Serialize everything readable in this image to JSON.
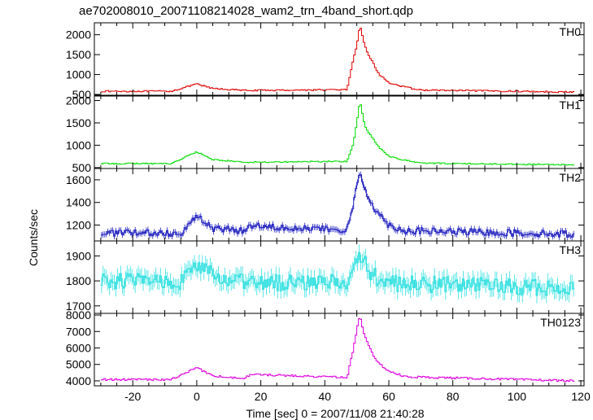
{
  "chart_data": {
    "type": "line",
    "title": "ae702008010_20071108214028_wam2_trn_4band_short.qdp",
    "xlabel": "Time [sec] 0 = 2007/11/08 21:40:28",
    "ylabel": "Counts/sec",
    "xlim": [
      -32,
      121
    ],
    "x_ticks": [
      "-20",
      "0",
      "20",
      "40",
      "60",
      "80",
      "100",
      "120"
    ],
    "x_tick_values": [
      -20,
      0,
      20,
      40,
      60,
      80,
      100,
      120
    ],
    "panels": [
      {
        "name": "TH0",
        "color": "#e00000",
        "ylim": [
          480,
          2300
        ],
        "y_ticks": [
          "500",
          "1000",
          "1500",
          "2000"
        ],
        "y_tick_values": [
          500,
          1000,
          1500,
          2000
        ],
        "base": 560,
        "noise": 18,
        "errbars": false,
        "features": [
          {
            "x": -8,
            "y": 580
          },
          {
            "x": 0,
            "y": 760
          },
          {
            "x": 5,
            "y": 650
          },
          {
            "x": 15,
            "y": 600
          },
          {
            "x": 47,
            "y": 620
          },
          {
            "x": 49,
            "y": 1400
          },
          {
            "x": 50,
            "y": 1700
          },
          {
            "x": 51,
            "y": 2250
          },
          {
            "x": 52,
            "y": 1900
          },
          {
            "x": 53,
            "y": 1600
          },
          {
            "x": 55,
            "y": 1300
          },
          {
            "x": 57,
            "y": 1000
          },
          {
            "x": 60,
            "y": 800
          },
          {
            "x": 64,
            "y": 700
          },
          {
            "x": 70,
            "y": 610
          },
          {
            "x": 118,
            "y": 560
          }
        ]
      },
      {
        "name": "TH1",
        "color": "#00dd00",
        "ylim": [
          480,
          2100
        ],
        "y_ticks": [
          "500",
          "1000",
          "1500",
          "2000"
        ],
        "y_tick_values": [
          500,
          1000,
          1500,
          2000
        ],
        "base": 560,
        "noise": 14,
        "errbars": false,
        "features": [
          {
            "x": -8,
            "y": 590
          },
          {
            "x": 0,
            "y": 850
          },
          {
            "x": 5,
            "y": 680
          },
          {
            "x": 15,
            "y": 620
          },
          {
            "x": 47,
            "y": 640
          },
          {
            "x": 49,
            "y": 1050
          },
          {
            "x": 50,
            "y": 1500
          },
          {
            "x": 51,
            "y": 2000
          },
          {
            "x": 52,
            "y": 1600
          },
          {
            "x": 53,
            "y": 1350
          },
          {
            "x": 55,
            "y": 1150
          },
          {
            "x": 57,
            "y": 950
          },
          {
            "x": 60,
            "y": 760
          },
          {
            "x": 64,
            "y": 680
          },
          {
            "x": 70,
            "y": 600
          },
          {
            "x": 118,
            "y": 560
          }
        ]
      },
      {
        "name": "TH2",
        "color": "#2020c0",
        "ylim": [
          1060,
          1700
        ],
        "y_ticks": [
          "1200",
          "1400",
          "1600"
        ],
        "y_tick_values": [
          1200,
          1400,
          1600
        ],
        "base": 1120,
        "noise": 30,
        "errbars": true,
        "features": [
          {
            "x": -5,
            "y": 1130
          },
          {
            "x": 0,
            "y": 1280
          },
          {
            "x": 5,
            "y": 1170
          },
          {
            "x": 15,
            "y": 1150
          },
          {
            "x": 17,
            "y": 1200
          },
          {
            "x": 47,
            "y": 1150
          },
          {
            "x": 49,
            "y": 1400
          },
          {
            "x": 51,
            "y": 1660
          },
          {
            "x": 53,
            "y": 1480
          },
          {
            "x": 56,
            "y": 1330
          },
          {
            "x": 60,
            "y": 1200
          },
          {
            "x": 65,
            "y": 1150
          },
          {
            "x": 118,
            "y": 1120
          }
        ]
      },
      {
        "name": "TH3",
        "color": "#30e0e0",
        "ylim": [
          1670,
          1960
        ],
        "y_ticks": [
          "1700",
          "1800",
          "1900"
        ],
        "y_tick_values": [
          1700,
          1800,
          1900
        ],
        "base": 1780,
        "noise": 35,
        "errbars": true,
        "features": [
          {
            "x": -5,
            "y": 1800
          },
          {
            "x": 0,
            "y": 1860
          },
          {
            "x": 5,
            "y": 1820
          },
          {
            "x": 15,
            "y": 1790
          },
          {
            "x": 48,
            "y": 1800
          },
          {
            "x": 51,
            "y": 1910
          },
          {
            "x": 54,
            "y": 1830
          },
          {
            "x": 60,
            "y": 1790
          },
          {
            "x": 118,
            "y": 1770
          }
        ]
      },
      {
        "name": "TH0123",
        "color": "#e000e0",
        "ylim": [
          3700,
          8100
        ],
        "y_ticks": [
          "4000",
          "5000",
          "6000",
          "7000",
          "8000"
        ],
        "y_tick_values": [
          4000,
          5000,
          6000,
          7000,
          8000
        ],
        "base": 4020,
        "noise": 60,
        "errbars": false,
        "features": [
          {
            "x": -8,
            "y": 4080
          },
          {
            "x": 0,
            "y": 4800
          },
          {
            "x": 5,
            "y": 4300
          },
          {
            "x": 15,
            "y": 4150
          },
          {
            "x": 17,
            "y": 4400
          },
          {
            "x": 47,
            "y": 4200
          },
          {
            "x": 49,
            "y": 6000
          },
          {
            "x": 50,
            "y": 7100
          },
          {
            "x": 51,
            "y": 8000
          },
          {
            "x": 52,
            "y": 7000
          },
          {
            "x": 54,
            "y": 6000
          },
          {
            "x": 56,
            "y": 5200
          },
          {
            "x": 60,
            "y": 4600
          },
          {
            "x": 65,
            "y": 4250
          },
          {
            "x": 118,
            "y": 4000
          }
        ]
      }
    ]
  }
}
